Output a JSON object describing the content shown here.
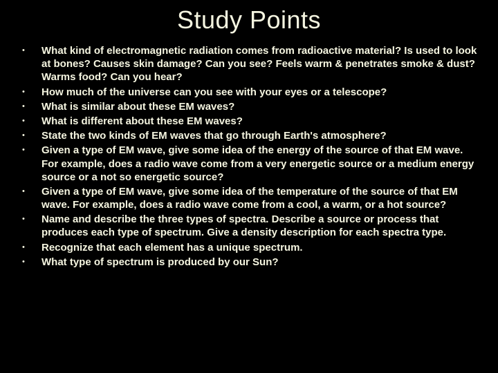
{
  "title": "Study Points",
  "title_color": "#f5f5e0",
  "title_fontsize": 36,
  "background_color": "#000000",
  "bullet_color": "#f5f5e0",
  "bullet_fontsize": 15,
  "bullet_marker": "•",
  "bullets": [
    "What kind of electromagnetic radiation comes from radioactive material? Is used to look at bones? Causes skin damage? Can you see? Feels warm & penetrates smoke & dust? Warms food? Can you hear?",
    "How much of the universe can you see with your eyes or a telescope?",
    "What is similar about these EM waves?",
    "What is different about these EM waves?",
    "State the two kinds of EM waves that go through Earth's atmosphere?",
    "Given a type of EM wave, give some idea of the energy of the source of that EM wave. For example, does a radio wave come from a very energetic source or a medium energy source or a not so energetic source?",
    "Given a type of EM wave, give some idea of the temperature of the source of that EM wave. For example, does a radio wave come from a cool, a warm, or a hot source?",
    "Name and describe the three types of spectra. Describe a source or process that produces each type of spectrum. Give a density description for each spectra type.",
    "Recognize that each element has a unique spectrum.",
    "What type of spectrum is produced by our Sun?"
  ]
}
